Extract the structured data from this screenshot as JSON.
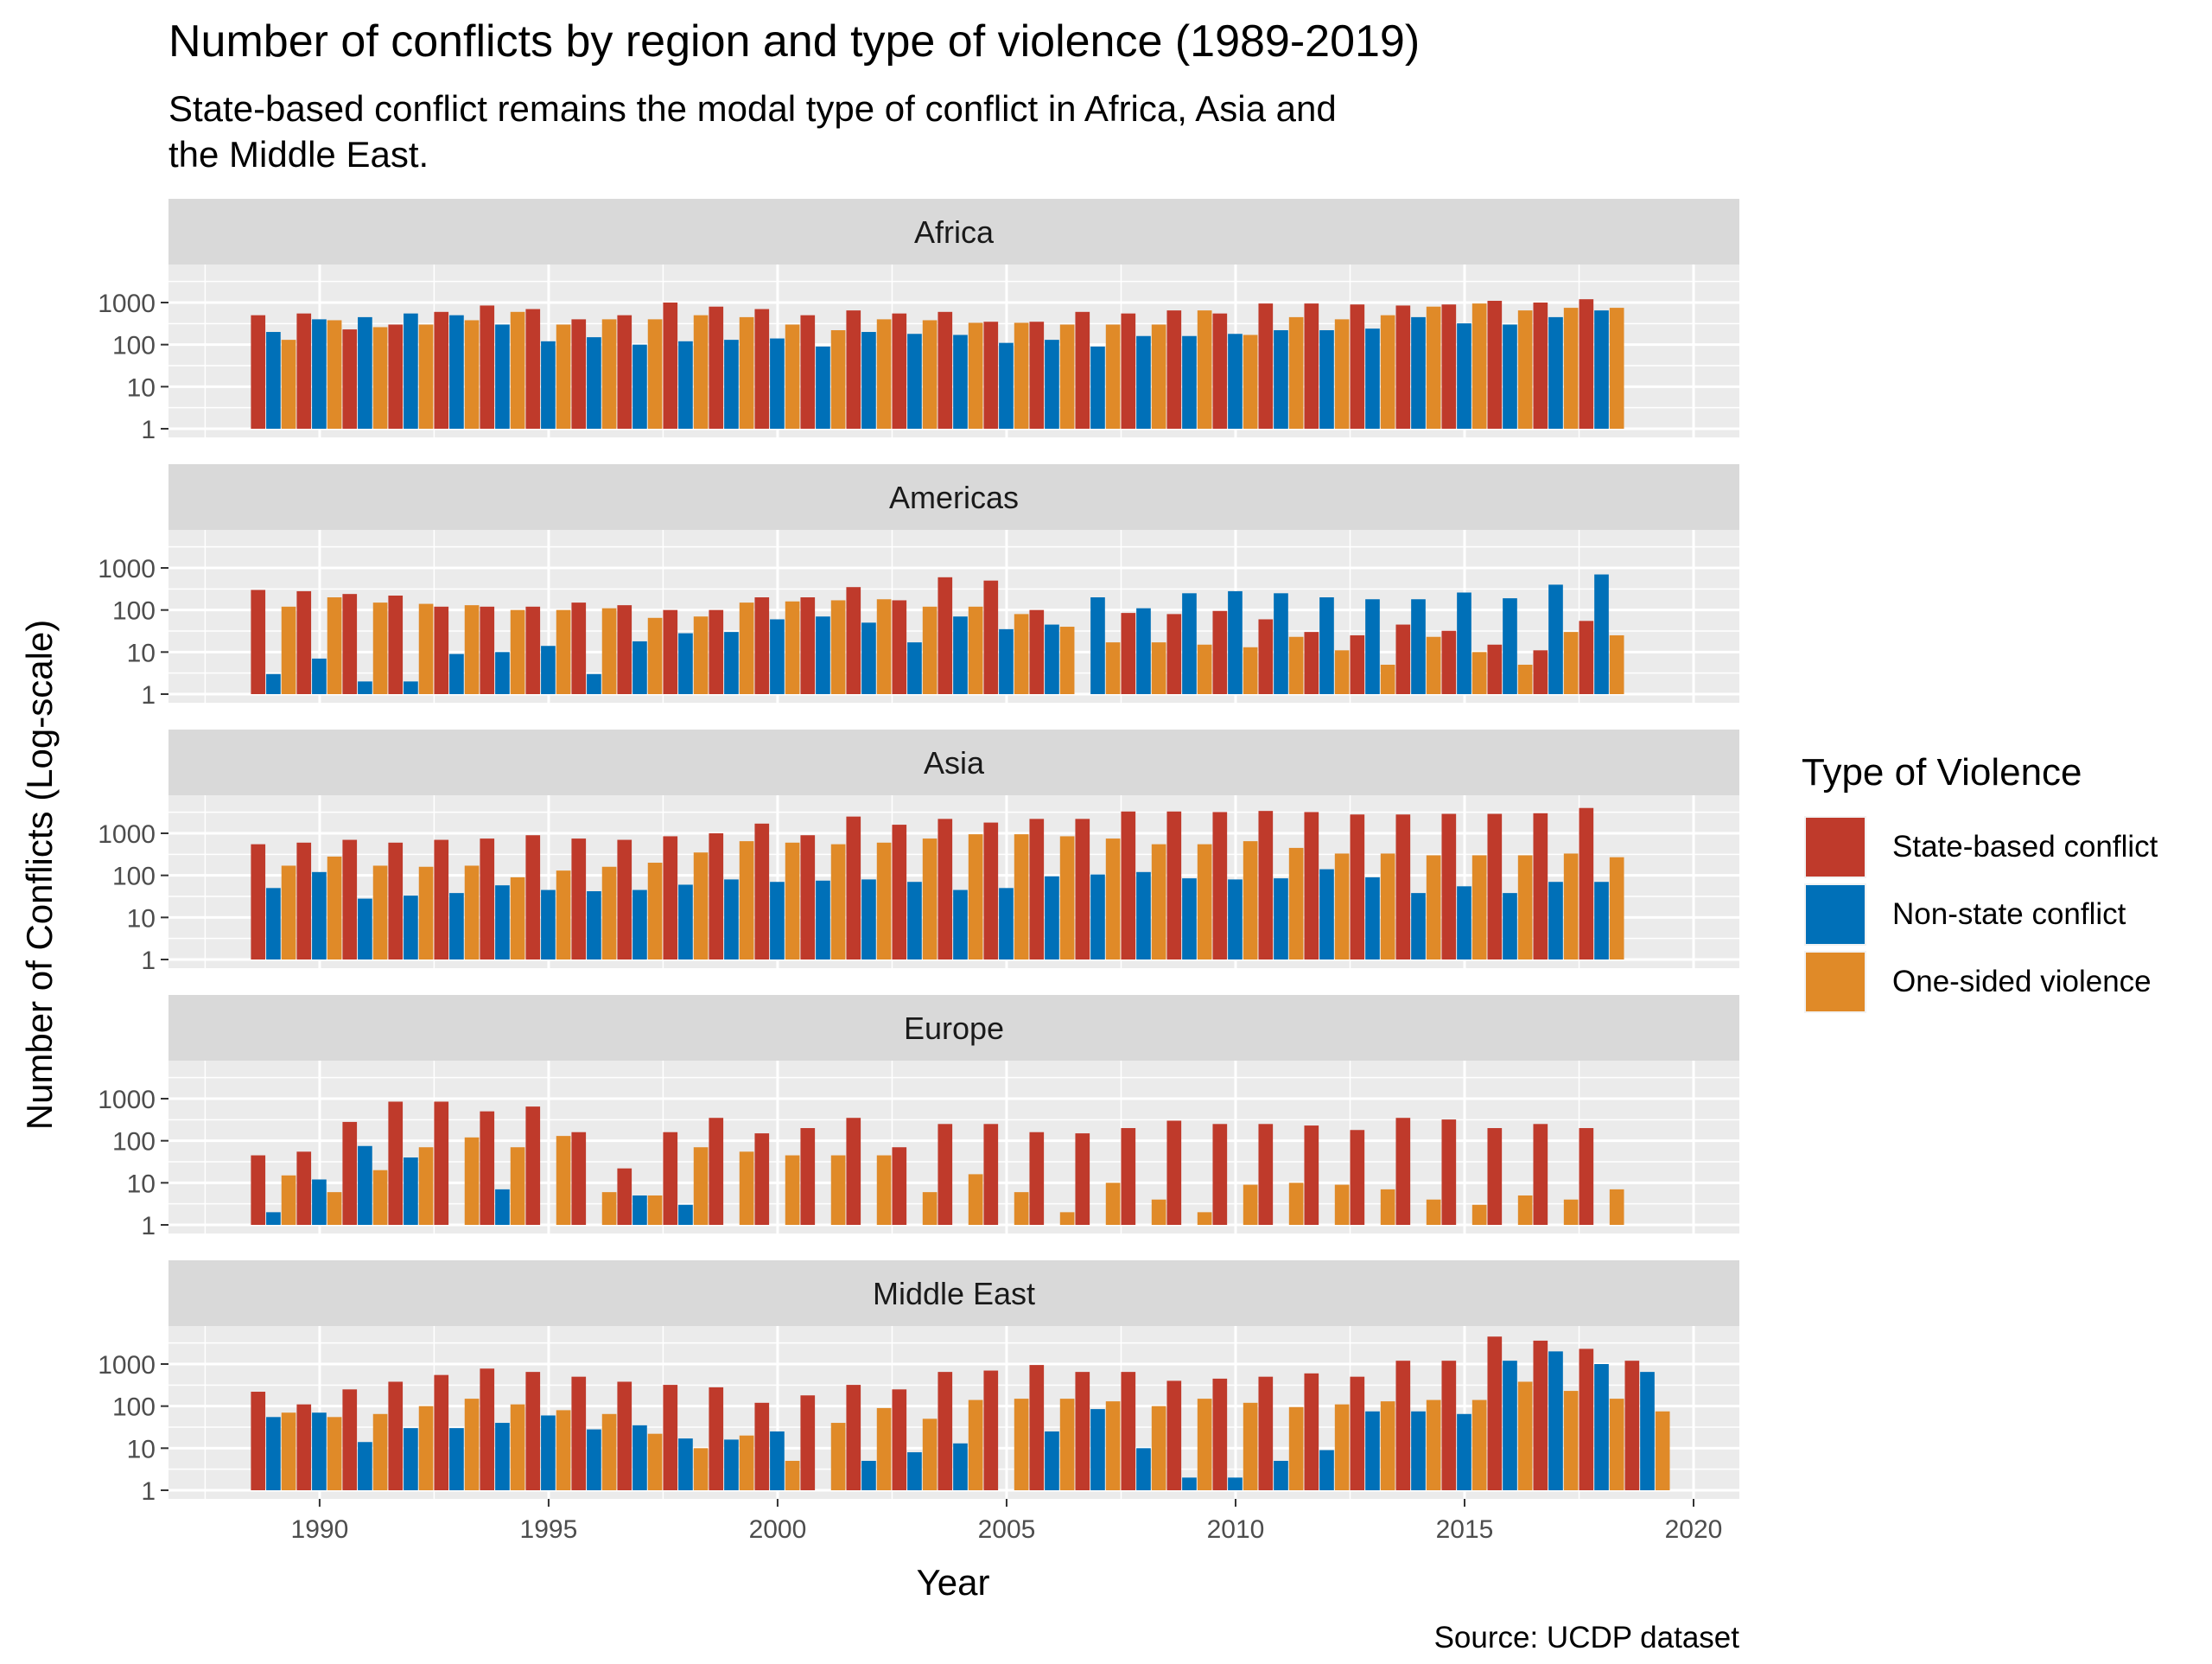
{
  "chart_data": {
    "type": "bar",
    "title": "Number of conflicts by region and type of violence (1989-2019)",
    "subtitle_lines": [
      "State-based conflict remains the modal type of conflict in Africa, Asia and",
      "the Middle East."
    ],
    "xlabel": "Year",
    "ylabel": "Number of Conflicts (Log-scale)",
    "caption": "Source: UCDP dataset",
    "y_scale": "log10",
    "ylim": [
      1,
      5000
    ],
    "y_ticks": [
      1,
      10,
      100,
      1000
    ],
    "y_tick_labels": [
      "1",
      "10",
      "100",
      "1000"
    ],
    "xlim": [
      1986.7,
      2021.0
    ],
    "x_ticks": [
      1990,
      1995,
      2000,
      2005,
      2010,
      2015,
      2020
    ],
    "x_tick_labels": [
      "1990",
      "1995",
      "2000",
      "2005",
      "2010",
      "2015",
      "2020"
    ],
    "legend": {
      "title": "Type of Violence",
      "position": "right",
      "entries": [
        "State-based conflict",
        "Non-state conflict",
        "One-sided violence"
      ]
    },
    "colors": {
      "State-based conflict": "#BF3A2B",
      "Non-state conflict": "#0070B8",
      "One-sided violence": "#E08A28",
      "panel_background": "#EBEBEB",
      "strip_background": "#D9D9D9"
    },
    "years": [
      1989,
      1990,
      1991,
      1992,
      1993,
      1994,
      1995,
      1996,
      1997,
      1998,
      1999,
      2000,
      2001,
      2002,
      2003,
      2004,
      2005,
      2006,
      2007,
      2008,
      2009,
      2010,
      2011,
      2012,
      2013,
      2014,
      2015,
      2016,
      2017,
      2018,
      2019
    ],
    "facets": [
      {
        "region": "Africa",
        "series": [
          {
            "name": "State-based conflict",
            "values": [
              500,
              550,
              230,
              300,
              600,
              850,
              700,
              400,
              500,
              1000,
              800,
              700,
              500,
              650,
              550,
              600,
              350,
              350,
              600,
              550,
              650,
              550,
              950,
              950,
              900,
              850,
              900,
              1100,
              1000,
              1200,
              null
            ]
          },
          {
            "name": "Non-state conflict",
            "values": [
              200,
              400,
              450,
              550,
              500,
              300,
              120,
              150,
              100,
              120,
              130,
              140,
              90,
              200,
              180,
              170,
              110,
              130,
              90,
              160,
              160,
              180,
              220,
              220,
              240,
              450,
              320,
              300,
              450,
              650,
              null
            ]
          },
          {
            "name": "One-sided violence",
            "values": [
              130,
              380,
              260,
              300,
              380,
              600,
              300,
              400,
              400,
              500,
              450,
              300,
              220,
              400,
              380,
              330,
              330,
              300,
              300,
              300,
              650,
              170,
              450,
              400,
              500,
              800,
              950,
              650,
              750,
              750,
              null
            ]
          }
        ]
      },
      {
        "region": "Americas",
        "series": [
          {
            "name": "State-based conflict",
            "values": [
              300,
              280,
              240,
              220,
              120,
              120,
              120,
              150,
              130,
              100,
              100,
              200,
              200,
              350,
              170,
              600,
              500,
              100,
              null,
              85,
              80,
              95,
              60,
              30,
              25,
              45,
              32,
              15,
              11,
              55,
              null
            ]
          },
          {
            "name": "Non-state conflict",
            "values": [
              3,
              7,
              2,
              2,
              9,
              10,
              14,
              3,
              18,
              28,
              30,
              60,
              70,
              50,
              17,
              70,
              35,
              45,
              200,
              110,
              250,
              280,
              250,
              200,
              180,
              180,
              260,
              190,
              400,
              700,
              null
            ]
          },
          {
            "name": "One-sided violence",
            "values": [
              120,
              200,
              150,
              140,
              130,
              100,
              100,
              110,
              65,
              70,
              150,
              160,
              170,
              180,
              120,
              120,
              80,
              40,
              17,
              17,
              15,
              13,
              23,
              11,
              5,
              23,
              10,
              5,
              30,
              25,
              null
            ]
          }
        ]
      },
      {
        "region": "Asia",
        "series": [
          {
            "name": "State-based conflict",
            "values": [
              550,
              600,
              700,
              600,
              700,
              750,
              900,
              750,
              700,
              850,
              1000,
              1700,
              900,
              2500,
              1600,
              2200,
              1800,
              2200,
              2200,
              3300,
              3300,
              3200,
              3400,
              3200,
              2800,
              2800,
              2900,
              2900,
              3000,
              4000,
              null
            ]
          },
          {
            "name": "Non-state conflict",
            "values": [
              50,
              120,
              28,
              33,
              38,
              58,
              45,
              42,
              45,
              60,
              80,
              70,
              75,
              80,
              70,
              45,
              50,
              95,
              105,
              120,
              85,
              80,
              85,
              140,
              90,
              38,
              55,
              38,
              70,
              70,
              null
            ]
          },
          {
            "name": "One-sided violence",
            "values": [
              170,
              280,
              170,
              160,
              170,
              90,
              130,
              160,
              200,
              350,
              650,
              600,
              550,
              600,
              750,
              950,
              950,
              850,
              750,
              550,
              550,
              650,
              450,
              330,
              330,
              300,
              300,
              300,
              330,
              270,
              null
            ]
          }
        ]
      },
      {
        "region": "Europe",
        "series": [
          {
            "name": "State-based conflict",
            "values": [
              45,
              55,
              280,
              850,
              850,
              500,
              650,
              160,
              22,
              160,
              350,
              150,
              200,
              350,
              70,
              250,
              250,
              160,
              150,
              200,
              300,
              250,
              250,
              230,
              180,
              350,
              320,
              200,
              250,
              200,
              null
            ]
          },
          {
            "name": "Non-state conflict",
            "values": [
              2,
              12,
              75,
              40,
              null,
              7,
              null,
              null,
              5,
              3,
              null,
              null,
              null,
              null,
              null,
              null,
              null,
              null,
              null,
              null,
              null,
              null,
              null,
              null,
              null,
              null,
              null,
              null,
              null,
              null,
              null
            ]
          },
          {
            "name": "One-sided violence",
            "values": [
              15,
              6,
              20,
              70,
              120,
              70,
              130,
              6,
              5,
              70,
              55,
              45,
              45,
              45,
              6,
              16,
              6,
              2,
              10,
              4,
              2,
              9,
              10,
              9,
              7,
              4,
              3,
              5,
              4,
              7,
              null
            ]
          }
        ]
      },
      {
        "region": "Middle East",
        "series": [
          {
            "name": "State-based conflict",
            "values": [
              220,
              110,
              250,
              380,
              550,
              780,
              650,
              500,
              380,
              320,
              280,
              120,
              180,
              320,
              250,
              650,
              700,
              950,
              650,
              650,
              400,
              450,
              500,
              600,
              500,
              1200,
              1200,
              4500,
              3600,
              2300,
              1200
            ]
          },
          {
            "name": "Non-state conflict",
            "values": [
              55,
              70,
              14,
              30,
              30,
              40,
              60,
              28,
              35,
              17,
              16,
              25,
              null,
              5,
              8,
              13,
              null,
              25,
              85,
              10,
              2,
              2,
              5,
              9,
              75,
              75,
              65,
              1200,
              2000,
              1000,
              650
            ]
          },
          {
            "name": "One-sided violence",
            "values": [
              70,
              55,
              65,
              100,
              150,
              110,
              80,
              65,
              22,
              10,
              20,
              5,
              40,
              90,
              50,
              140,
              150,
              150,
              130,
              100,
              150,
              120,
              95,
              110,
              130,
              140,
              140,
              380,
              230,
              150,
              75
            ]
          }
        ]
      }
    ]
  }
}
